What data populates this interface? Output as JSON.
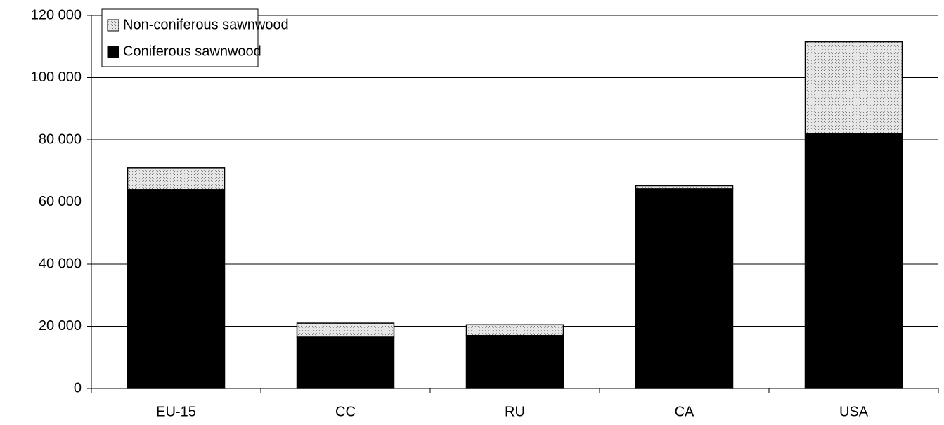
{
  "chart_data": {
    "type": "bar",
    "stacked": true,
    "categories": [
      "EU-15",
      "CC",
      "RU",
      "CA",
      "USA"
    ],
    "series": [
      {
        "name": "Coniferous sawnwood",
        "color": "#000000",
        "values": [
          64000,
          16500,
          17000,
          64200,
          82000
        ]
      },
      {
        "name": "Non-coniferous sawnwood",
        "color": "#d4d4d4",
        "values": [
          7000,
          4500,
          3500,
          1000,
          29500
        ]
      }
    ],
    "ylim": [
      0,
      120000
    ],
    "yticks": [
      0,
      {
        "value": 20000,
        "label": "20 000"
      },
      {
        "value": 40000,
        "label": "40 000"
      },
      {
        "value": 60000,
        "label": "60 000"
      },
      {
        "value": 80000,
        "label": "80 000"
      },
      {
        "value": 100000,
        "label": "100 000"
      },
      {
        "value": 120000,
        "label": "120 000"
      }
    ],
    "grid": true,
    "legend": "upper left"
  }
}
